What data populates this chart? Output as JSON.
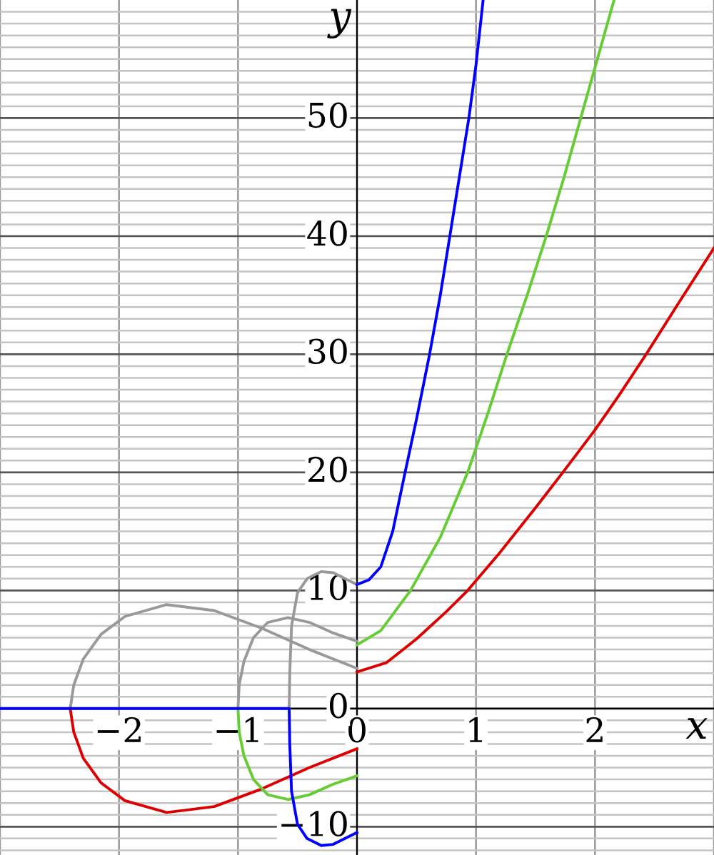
{
  "chart_data": {
    "type": "line",
    "xlabel": "x",
    "ylabel": "y",
    "xlim": [
      -3,
      3
    ],
    "ylim": [
      -12.4,
      60
    ],
    "xticks": [
      {
        "value": -3,
        "label": null
      },
      {
        "value": -2,
        "label": "−2"
      },
      {
        "value": -1,
        "label": "−1"
      },
      {
        "value": 0,
        "label": "0"
      },
      {
        "value": 1,
        "label": "1"
      },
      {
        "value": 2,
        "label": "2"
      },
      {
        "value": 3,
        "label": null
      }
    ],
    "yticks": [
      {
        "value": -12,
        "label": null
      },
      {
        "value": -11,
        "label": null
      },
      {
        "value": -10,
        "label": "−10"
      },
      {
        "value": -9,
        "label": null
      },
      {
        "value": -8,
        "label": null
      },
      {
        "value": -7,
        "label": null
      },
      {
        "value": -6,
        "label": null
      },
      {
        "value": -5,
        "label": null
      },
      {
        "value": -4,
        "label": null
      },
      {
        "value": -3,
        "label": null
      },
      {
        "value": -2,
        "label": null
      },
      {
        "value": -1,
        "label": null
      },
      {
        "value": 0,
        "label": "0"
      },
      {
        "value": 1,
        "label": null
      },
      {
        "value": 2,
        "label": null
      },
      {
        "value": 3,
        "label": null
      },
      {
        "value": 4,
        "label": null
      },
      {
        "value": 5,
        "label": null
      },
      {
        "value": 6,
        "label": null
      },
      {
        "value": 7,
        "label": null
      },
      {
        "value": 8,
        "label": null
      },
      {
        "value": 9,
        "label": null
      },
      {
        "value": 10,
        "label": "10"
      },
      {
        "value": 11,
        "label": null
      },
      {
        "value": 12,
        "label": null
      },
      {
        "value": 13,
        "label": null
      },
      {
        "value": 14,
        "label": null
      },
      {
        "value": 15,
        "label": null
      },
      {
        "value": 16,
        "label": null
      },
      {
        "value": 17,
        "label": null
      },
      {
        "value": 18,
        "label": null
      },
      {
        "value": 19,
        "label": null
      },
      {
        "value": 20,
        "label": "20"
      },
      {
        "value": 21,
        "label": null
      },
      {
        "value": 22,
        "label": null
      },
      {
        "value": 23,
        "label": null
      },
      {
        "value": 24,
        "label": null
      },
      {
        "value": 25,
        "label": null
      },
      {
        "value": 26,
        "label": null
      },
      {
        "value": 27,
        "label": null
      },
      {
        "value": 28,
        "label": null
      },
      {
        "value": 29,
        "label": null
      },
      {
        "value": 30,
        "label": "30"
      },
      {
        "value": 31,
        "label": null
      },
      {
        "value": 32,
        "label": null
      },
      {
        "value": 33,
        "label": null
      },
      {
        "value": 34,
        "label": null
      },
      {
        "value": 35,
        "label": null
      },
      {
        "value": 36,
        "label": null
      },
      {
        "value": 37,
        "label": null
      },
      {
        "value": 38,
        "label": null
      },
      {
        "value": 39,
        "label": null
      },
      {
        "value": 40,
        "label": "40"
      },
      {
        "value": 41,
        "label": null
      },
      {
        "value": 42,
        "label": null
      },
      {
        "value": 43,
        "label": null
      },
      {
        "value": 44,
        "label": null
      },
      {
        "value": 45,
        "label": null
      },
      {
        "value": 46,
        "label": null
      },
      {
        "value": 47,
        "label": null
      },
      {
        "value": 48,
        "label": null
      },
      {
        "value": 49,
        "label": null
      },
      {
        "value": 50,
        "label": "50"
      },
      {
        "value": 51,
        "label": null
      },
      {
        "value": 52,
        "label": null
      },
      {
        "value": 53,
        "label": null
      },
      {
        "value": 54,
        "label": null
      },
      {
        "value": 55,
        "label": null
      },
      {
        "value": 56,
        "label": null
      },
      {
        "value": 57,
        "label": null
      },
      {
        "value": 58,
        "label": null
      },
      {
        "value": 59,
        "label": null
      }
    ],
    "grid": true,
    "line_style": "solid",
    "series": [
      {
        "color": "#999999",
        "x": [
          -2.41,
          -2.38,
          -2.3,
          -2.15,
          -1.95,
          -1.6,
          -1.2,
          -0.8,
          -0.4,
          0
        ],
        "values": [
          0,
          2,
          4.2,
          6.3,
          7.8,
          8.8,
          8.3,
          6.8,
          5.0,
          3.4
        ]
      },
      {
        "color": "#999999",
        "x": [
          -1,
          -0.99,
          -0.95,
          -0.87,
          -0.75,
          -0.58,
          -0.4,
          -0.2,
          0
        ],
        "values": [
          0,
          2,
          4,
          6,
          7.3,
          7.7,
          7.3,
          6.4,
          5.7
        ]
      },
      {
        "color": "#999999",
        "x": [
          -0.57,
          -0.565,
          -0.55,
          -0.5,
          -0.42,
          -0.3,
          -0.2,
          -0.1,
          0
        ],
        "values": [
          0,
          3,
          7,
          9.8,
          11.0,
          11.6,
          11.5,
          11,
          10.5
        ]
      },
      {
        "color": "#dd0000",
        "x": [
          -2.41,
          -2.38,
          -2.3,
          -2.15,
          -1.95,
          -1.6,
          -1.2,
          -0.8,
          -0.4,
          0,
          null,
          0,
          0.25,
          0.5,
          0.75,
          0.93,
          1.2,
          1.5,
          1.73,
          2.0,
          2.2,
          2.43,
          2.7,
          3.0
        ],
        "values": [
          0,
          -2,
          -4.2,
          -6.3,
          -7.8,
          -8.8,
          -8.3,
          -6.8,
          -5.0,
          -3.4,
          null,
          3.1,
          3.9,
          5.9,
          8.2,
          10,
          13.2,
          17,
          20,
          23.6,
          26.5,
          30,
          34.3,
          39
        ]
      },
      {
        "color": "#66cc33",
        "x": [
          -1,
          -0.99,
          -0.95,
          -0.87,
          -0.75,
          -0.58,
          -0.4,
          -0.2,
          0,
          null,
          0,
          0.2,
          0.45,
          0.7,
          0.93,
          1.1,
          1.26,
          1.43,
          1.59,
          1.74,
          1.88,
          2.02,
          2.16
        ],
        "values": [
          0,
          -2,
          -4,
          -6,
          -7.3,
          -7.7,
          -7.3,
          -6.4,
          -5.7,
          null,
          5.4,
          6.6,
          10,
          14.5,
          20,
          25,
          30,
          35,
          40,
          45,
          50,
          55,
          60
        ]
      },
      {
        "color": "#0000ff",
        "x": [
          -3,
          -0.57,
          -0.565,
          -0.55,
          -0.5,
          -0.42,
          -0.3,
          -0.2,
          -0.1,
          0,
          null,
          0,
          0.1,
          0.2,
          0.3,
          0.4,
          0.5,
          0.61,
          0.7,
          0.78,
          0.86,
          0.94,
          1.0,
          1.06
        ],
        "values": [
          0,
          0,
          -3,
          -7,
          -9.8,
          -11.0,
          -11.6,
          -11.5,
          -11,
          -10.5,
          null,
          10.5,
          10.9,
          12,
          15,
          19.8,
          24.5,
          30,
          35,
          40,
          45,
          50,
          54.5,
          60
        ]
      }
    ]
  }
}
